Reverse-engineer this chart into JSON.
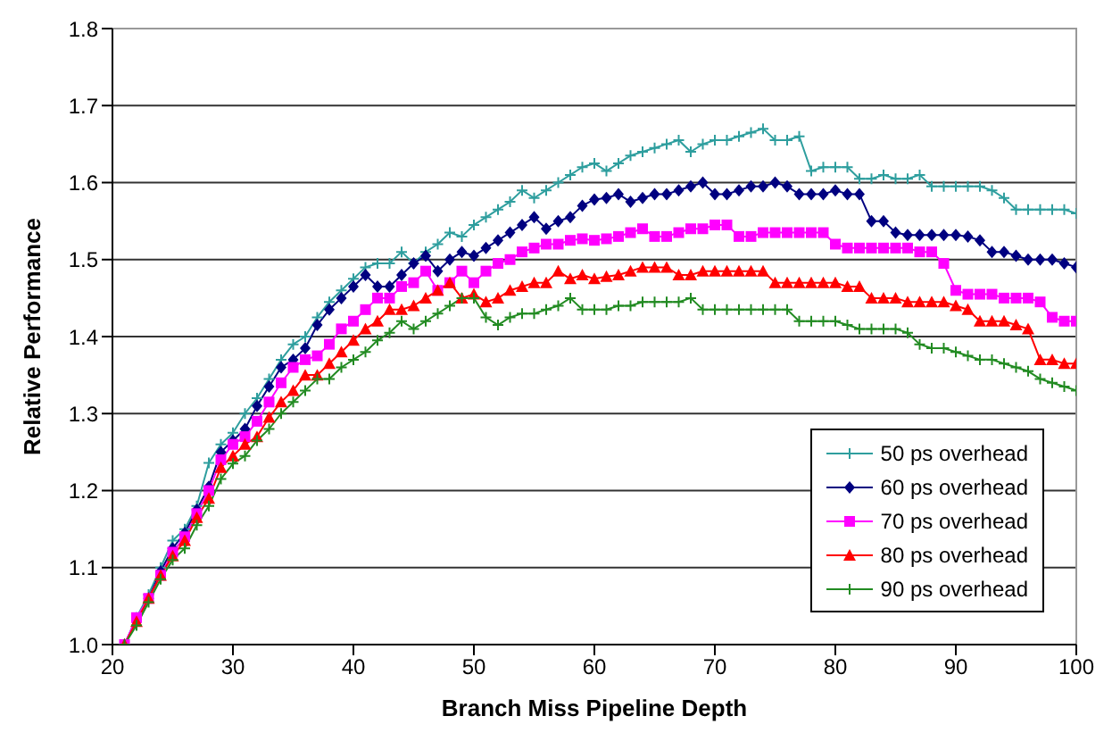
{
  "chart_data": {
    "type": "line",
    "xlabel": "Branch Miss Pipeline Depth",
    "ylabel": "Relative Performance",
    "x": [
      21,
      22,
      23,
      24,
      25,
      26,
      27,
      28,
      29,
      30,
      31,
      32,
      33,
      34,
      35,
      36,
      37,
      38,
      39,
      40,
      41,
      42,
      43,
      44,
      45,
      46,
      47,
      48,
      49,
      50,
      51,
      52,
      53,
      54,
      55,
      56,
      57,
      58,
      59,
      60,
      61,
      62,
      63,
      64,
      65,
      66,
      67,
      68,
      69,
      70,
      71,
      72,
      73,
      74,
      75,
      76,
      77,
      78,
      79,
      80,
      81,
      82,
      83,
      84,
      85,
      86,
      87,
      88,
      89,
      90,
      91,
      92,
      93,
      94,
      95,
      96,
      97,
      98,
      99,
      100
    ],
    "xlim": [
      20,
      100
    ],
    "xticks": [
      20,
      30,
      40,
      50,
      60,
      70,
      80,
      90,
      100
    ],
    "ylim": [
      1,
      1.8
    ],
    "yticks": [
      {
        "value": 1,
        "label": "1.0"
      },
      1.1,
      1.2,
      1.3,
      1.4,
      1.5,
      1.6,
      1.7,
      1.8
    ],
    "grid": "y",
    "legend": "bottom right",
    "line_style": "solid",
    "series": [
      {
        "name": "50 ps overhead",
        "color": "#2e9e9e",
        "marker": "cross",
        "values": [
          1.0,
          1.035,
          1.065,
          1.1,
          1.135,
          1.15,
          1.18,
          1.236,
          1.26,
          1.275,
          1.3,
          1.32,
          1.345,
          1.37,
          1.39,
          1.4,
          1.425,
          1.445,
          1.46,
          1.475,
          1.49,
          1.495,
          1.495,
          1.51,
          1.495,
          1.51,
          1.52,
          1.535,
          1.53,
          1.545,
          1.555,
          1.565,
          1.575,
          1.59,
          1.58,
          1.59,
          1.6,
          1.61,
          1.62,
          1.625,
          1.615,
          1.625,
          1.635,
          1.64,
          1.645,
          1.65,
          1.655,
          1.64,
          1.65,
          1.655,
          1.655,
          1.66,
          1.665,
          1.67,
          1.655,
          1.655,
          1.66,
          1.615,
          1.62,
          1.62,
          1.62,
          1.605,
          1.605,
          1.61,
          1.605,
          1.605,
          1.61,
          1.595,
          1.595,
          1.595,
          1.595,
          1.595,
          1.59,
          1.58,
          1.565,
          1.565,
          1.565,
          1.565,
          1.565,
          1.56
        ]
      },
      {
        "name": "60 ps overhead",
        "color": "#000080",
        "marker": "diamond",
        "values": [
          1.0,
          1.03,
          1.06,
          1.095,
          1.125,
          1.145,
          1.175,
          1.205,
          1.25,
          1.265,
          1.28,
          1.31,
          1.335,
          1.36,
          1.37,
          1.385,
          1.415,
          1.435,
          1.45,
          1.465,
          1.48,
          1.465,
          1.465,
          1.48,
          1.495,
          1.505,
          1.485,
          1.5,
          1.51,
          1.505,
          1.515,
          1.525,
          1.535,
          1.545,
          1.555,
          1.54,
          1.55,
          1.555,
          1.57,
          1.578,
          1.58,
          1.585,
          1.575,
          1.58,
          1.585,
          1.585,
          1.59,
          1.595,
          1.6,
          1.585,
          1.585,
          1.59,
          1.595,
          1.595,
          1.6,
          1.595,
          1.585,
          1.585,
          1.585,
          1.59,
          1.585,
          1.585,
          1.55,
          1.55,
          1.535,
          1.532,
          1.532,
          1.532,
          1.532,
          1.532,
          1.53,
          1.525,
          1.51,
          1.51,
          1.505,
          1.5,
          1.5,
          1.5,
          1.495,
          1.49
        ]
      },
      {
        "name": "70 ps overhead",
        "color": "#ff00ff",
        "marker": "square",
        "values": [
          1.0,
          1.035,
          1.06,
          1.09,
          1.12,
          1.14,
          1.17,
          1.2,
          1.24,
          1.26,
          1.27,
          1.29,
          1.315,
          1.34,
          1.36,
          1.37,
          1.375,
          1.39,
          1.41,
          1.42,
          1.435,
          1.45,
          1.45,
          1.465,
          1.47,
          1.485,
          1.46,
          1.47,
          1.485,
          1.47,
          1.485,
          1.495,
          1.5,
          1.51,
          1.515,
          1.52,
          1.52,
          1.525,
          1.527,
          1.525,
          1.527,
          1.53,
          1.535,
          1.54,
          1.53,
          1.53,
          1.535,
          1.54,
          1.54,
          1.545,
          1.545,
          1.53,
          1.53,
          1.535,
          1.535,
          1.535,
          1.535,
          1.535,
          1.535,
          1.52,
          1.515,
          1.515,
          1.515,
          1.515,
          1.515,
          1.515,
          1.51,
          1.51,
          1.495,
          1.46,
          1.455,
          1.455,
          1.455,
          1.45,
          1.45,
          1.45,
          1.445,
          1.425,
          1.42,
          1.42
        ]
      },
      {
        "name": "80 ps overhead",
        "color": "#ff0000",
        "marker": "triangle",
        "values": [
          1.0,
          1.03,
          1.06,
          1.09,
          1.115,
          1.135,
          1.165,
          1.19,
          1.23,
          1.245,
          1.26,
          1.27,
          1.295,
          1.315,
          1.33,
          1.35,
          1.35,
          1.365,
          1.38,
          1.395,
          1.41,
          1.42,
          1.435,
          1.435,
          1.44,
          1.45,
          1.46,
          1.47,
          1.45,
          1.455,
          1.445,
          1.45,
          1.46,
          1.465,
          1.47,
          1.47,
          1.485,
          1.475,
          1.48,
          1.475,
          1.478,
          1.48,
          1.485,
          1.49,
          1.49,
          1.49,
          1.48,
          1.48,
          1.485,
          1.485,
          1.485,
          1.485,
          1.485,
          1.485,
          1.47,
          1.47,
          1.47,
          1.47,
          1.47,
          1.47,
          1.465,
          1.465,
          1.45,
          1.45,
          1.45,
          1.445,
          1.445,
          1.445,
          1.445,
          1.44,
          1.435,
          1.42,
          1.42,
          1.42,
          1.415,
          1.41,
          1.37,
          1.37,
          1.365,
          1.365
        ]
      },
      {
        "name": "90 ps overhead",
        "color": "#228b22",
        "marker": "cross",
        "values": [
          1.0,
          1.025,
          1.055,
          1.085,
          1.11,
          1.125,
          1.155,
          1.18,
          1.215,
          1.235,
          1.245,
          1.265,
          1.28,
          1.3,
          1.315,
          1.33,
          1.345,
          1.345,
          1.36,
          1.37,
          1.38,
          1.395,
          1.405,
          1.42,
          1.41,
          1.42,
          1.43,
          1.44,
          1.45,
          1.45,
          1.425,
          1.415,
          1.425,
          1.43,
          1.43,
          1.435,
          1.44,
          1.45,
          1.435,
          1.435,
          1.435,
          1.44,
          1.44,
          1.445,
          1.445,
          1.445,
          1.445,
          1.45,
          1.435,
          1.435,
          1.435,
          1.435,
          1.435,
          1.435,
          1.435,
          1.435,
          1.42,
          1.42,
          1.42,
          1.42,
          1.415,
          1.41,
          1.41,
          1.41,
          1.41,
          1.405,
          1.39,
          1.385,
          1.385,
          1.38,
          1.375,
          1.37,
          1.37,
          1.365,
          1.36,
          1.355,
          1.345,
          1.34,
          1.335,
          1.33
        ]
      }
    ]
  }
}
